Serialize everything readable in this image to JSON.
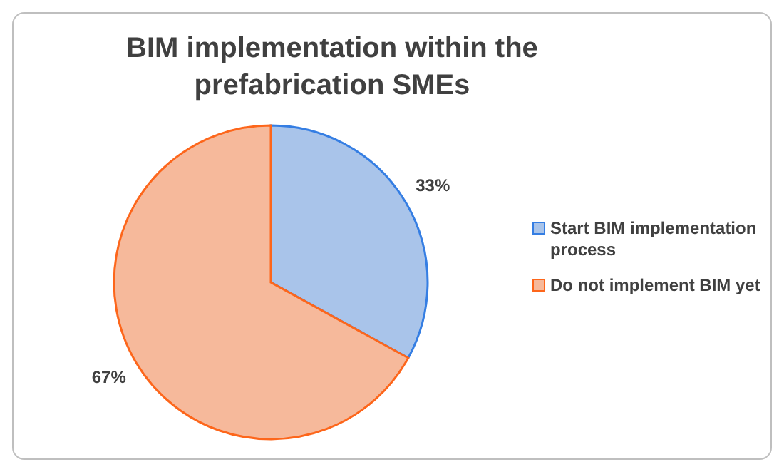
{
  "chart_data": {
    "type": "pie",
    "title": "BIM implementation within the prefabrication SMEs",
    "categories": [
      "Start BIM implementation process",
      "Do not implement BIM yet"
    ],
    "values": [
      33,
      67
    ],
    "colors": [
      "#a9c4ea",
      "#f6b99b"
    ],
    "value_labels": [
      "33%",
      "67%"
    ],
    "legend": "right"
  }
}
